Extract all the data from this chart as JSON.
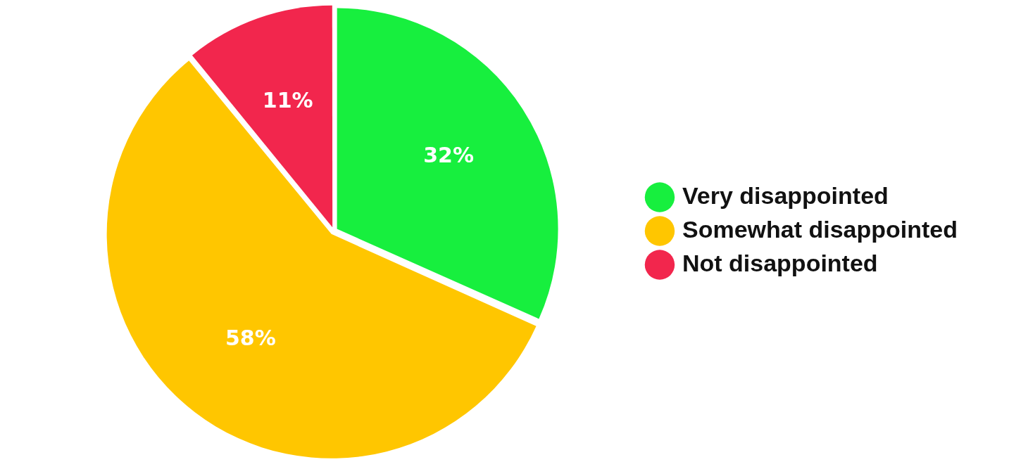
{
  "chart_data": {
    "type": "pie",
    "categories": [
      "Very disappointed",
      "Somewhat disappointed",
      "Not disappointed"
    ],
    "values": [
      32,
      58,
      11
    ],
    "value_labels": [
      "32%",
      "58%",
      "11%"
    ],
    "colors": [
      "#17ef3e",
      "#ffc600",
      "#f2264d"
    ],
    "legend": "right"
  }
}
